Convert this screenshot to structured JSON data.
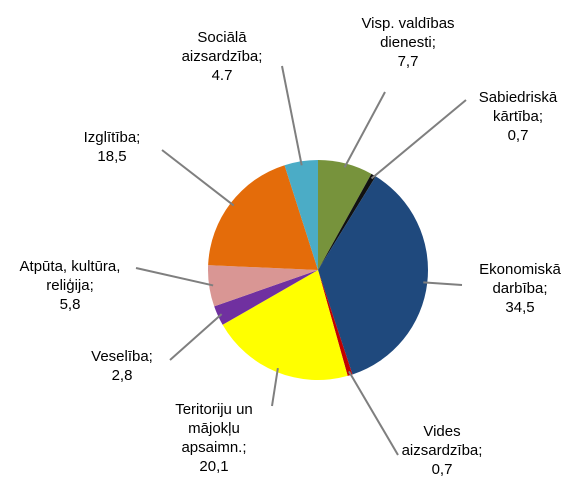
{
  "chart_data": {
    "type": "pie",
    "categories": [
      "Visp. valdības dienesti;",
      "Sabiedriskā kārtība;",
      "Ekonomiskā darbība;",
      "Vides aizsardzība;",
      "Teritoriju un mājokļu apsaimn.;",
      "Veselība;",
      "Atpūta, kultūra, reliģija;",
      "Izglītība;",
      "Sociālā aizsardzība;"
    ],
    "values": [
      7.7,
      0.7,
      34.5,
      0.7,
      20.1,
      2.8,
      5.8,
      18.5,
      4.7
    ],
    "value_labels": [
      "7,7",
      "0,7",
      "34,5",
      "0,7",
      "20,1",
      "2,8",
      "5,8",
      "18,5",
      "4.7"
    ],
    "colors": [
      "#77933c",
      "#111111",
      "#1f497d",
      "#c00000",
      "#ffff00",
      "#7030a0",
      "#d99694",
      "#e46c0a",
      "#4bacc6"
    ]
  }
}
